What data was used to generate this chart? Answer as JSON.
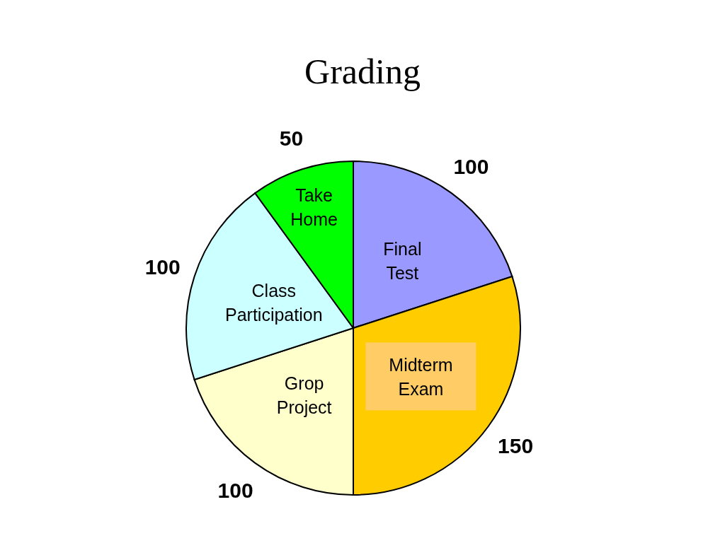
{
  "chart_data": {
    "type": "pie",
    "title": "Grading",
    "categories": [
      "Final Test",
      "Midterm Exam",
      "Grop Project",
      "Class Participation",
      "Take Home"
    ],
    "values": [
      100,
      150,
      100,
      100,
      50
    ],
    "colors": [
      "#9999ff",
      "#ffcc00",
      "#ffffcc",
      "#ccffff",
      "#00ff00"
    ],
    "data_labels": true
  }
}
